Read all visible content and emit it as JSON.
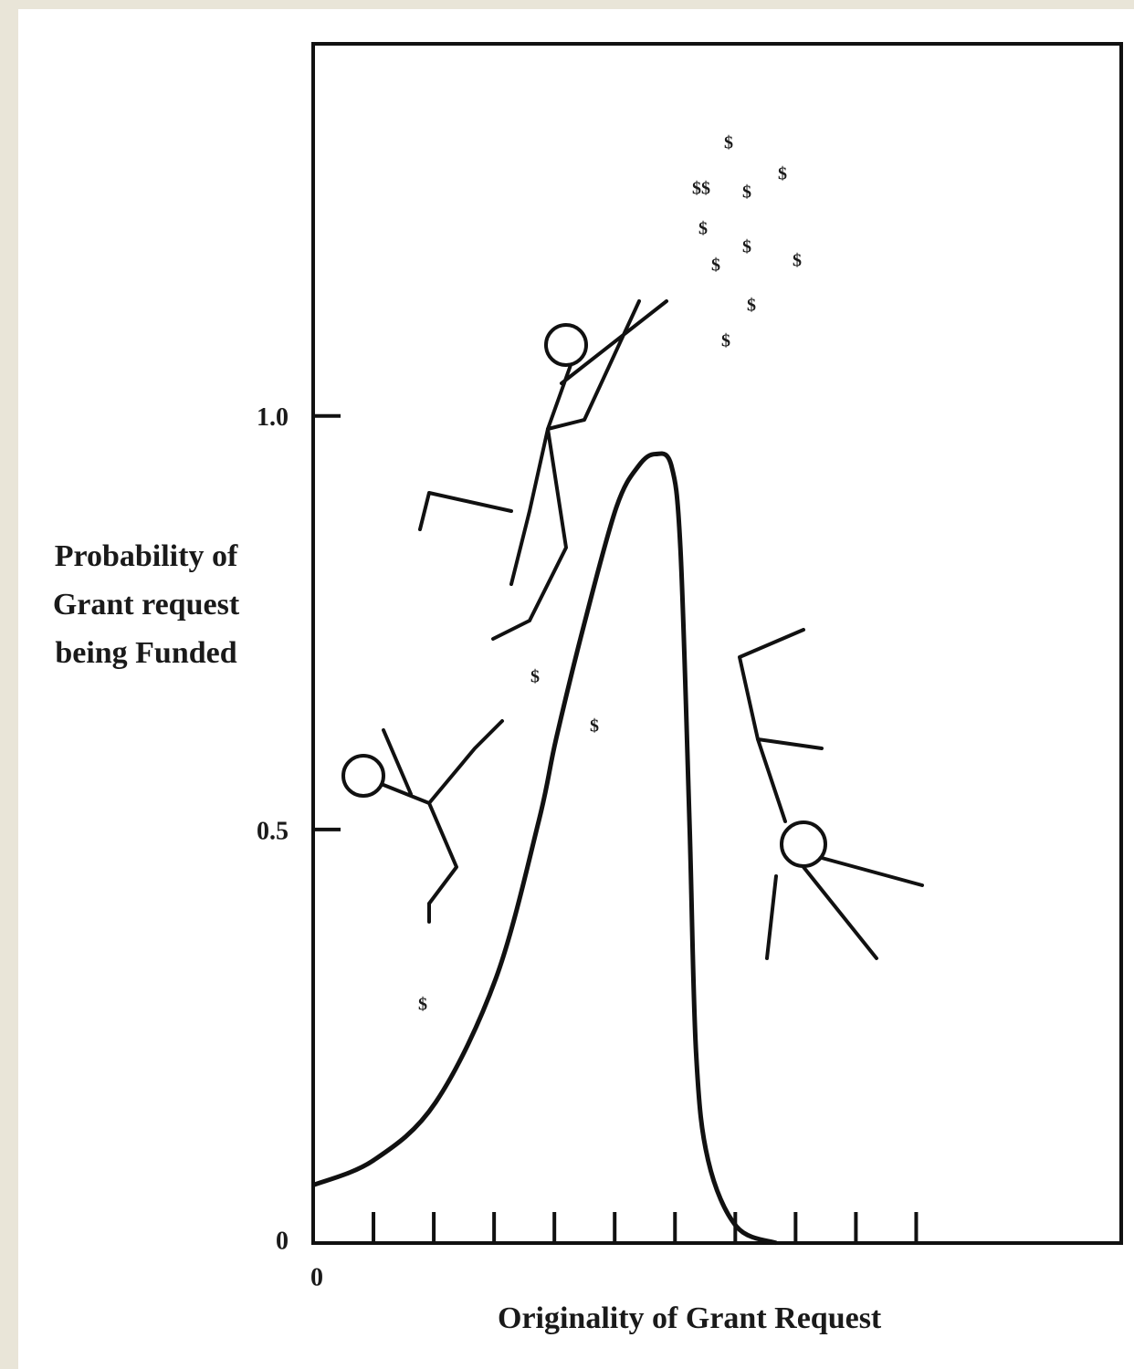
{
  "chart_data": {
    "type": "line",
    "xlabel": "Originality of Grant Request",
    "ylabel": [
      "Probability of",
      "Grant request",
      "being Funded"
    ],
    "x": [
      0,
      1,
      2.03,
      3.03,
      3.74,
      4.03,
      4.5,
      5.03,
      5.4,
      5.68,
      5.94,
      6.09,
      6.24,
      6.35,
      6.55,
      7.02,
      7.68
    ],
    "values": [
      0.07,
      0.1,
      0.17,
      0.32,
      0.51,
      0.61,
      0.75,
      0.89,
      0.94,
      0.954,
      0.94,
      0.84,
      0.51,
      0.23,
      0.1,
      0.02,
      0
    ],
    "color": "#111111",
    "xlim": [
      0,
      13.4
    ],
    "ylim": [
      0,
      1.45
    ],
    "xticks": [
      0
    ],
    "minor_xticks": [
      1,
      2,
      3,
      4,
      5,
      6,
      7,
      8,
      9,
      10
    ],
    "yticks": [
      0,
      0.5,
      {
        "value": 1,
        "label": "1.0"
      }
    ],
    "annotations": [
      "$",
      "$$",
      "$",
      "$",
      "$",
      "$",
      "$",
      "$",
      "$",
      "$",
      "$",
      "$",
      "$"
    ]
  }
}
